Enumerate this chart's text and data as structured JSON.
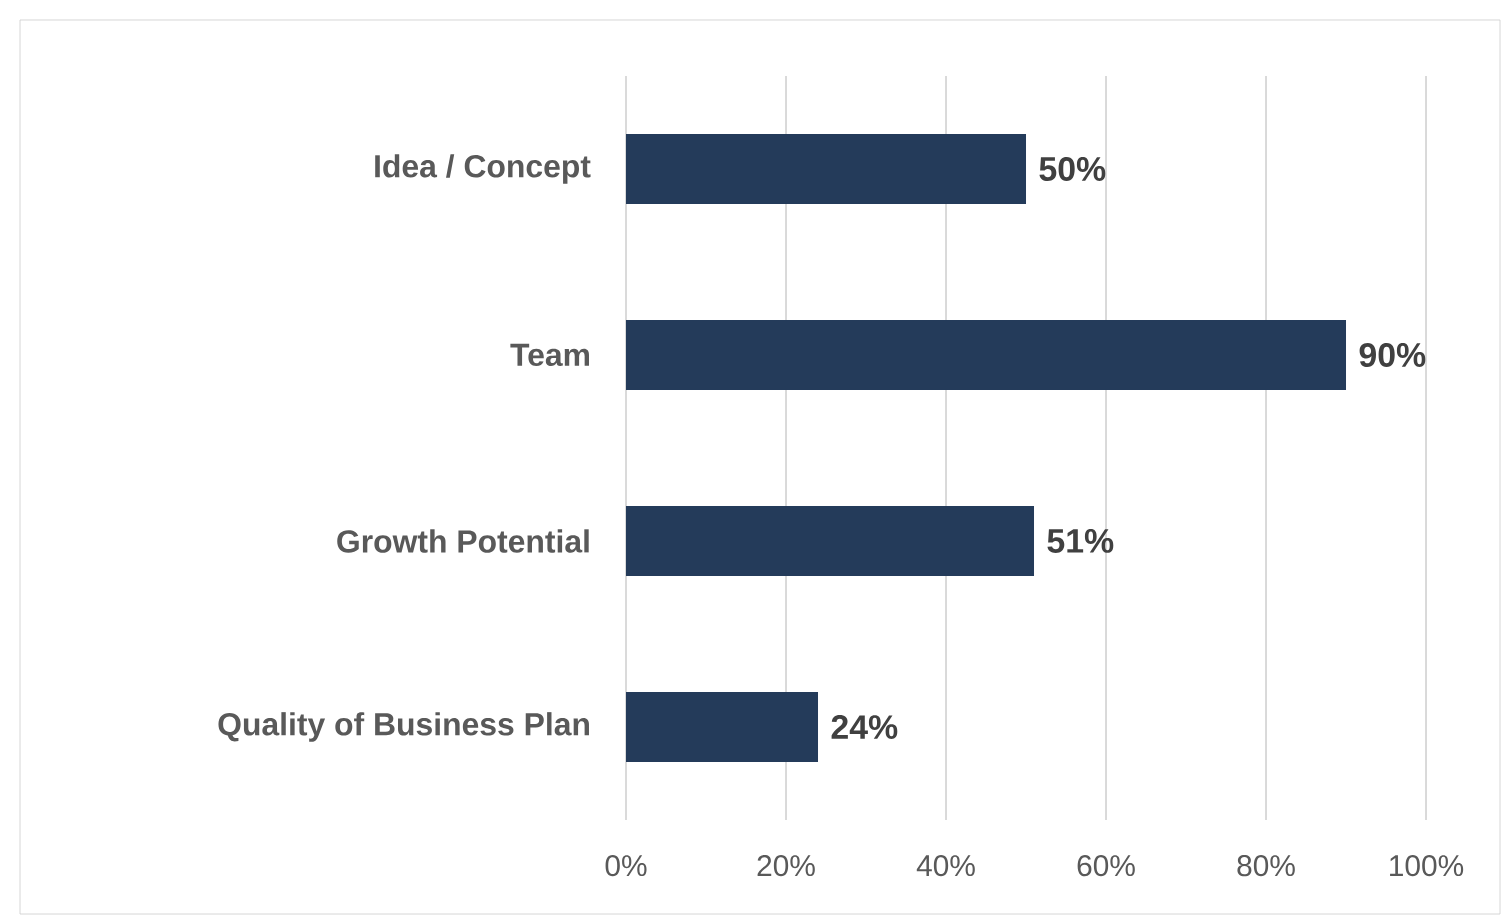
{
  "chart_data": {
    "type": "bar",
    "orientation": "horizontal",
    "categories": [
      "Idea / Concept",
      "Team",
      "Growth Potential",
      "Quality of Business Plan"
    ],
    "values": [
      50,
      90,
      51,
      24
    ],
    "value_labels": [
      "50%",
      "90%",
      "51%",
      "24%"
    ],
    "color": "#243b5a",
    "xlim": [
      0,
      100
    ],
    "xticks": [
      {
        "value": 0,
        "label": "0%"
      },
      {
        "value": 20,
        "label": "20%"
      },
      {
        "value": 40,
        "label": "40%"
      },
      {
        "value": 60,
        "label": "60%"
      },
      {
        "value": 80,
        "label": "80%"
      },
      {
        "value": 100,
        "label": "100%"
      }
    ],
    "grid": "x"
  }
}
